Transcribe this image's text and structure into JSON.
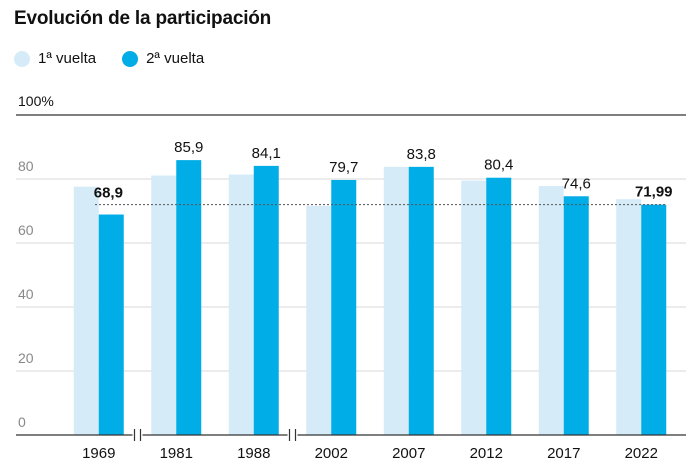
{
  "title": "Evolución de la participación",
  "legend": [
    {
      "label": "1ª vuelta",
      "color": "#d5ebf8"
    },
    {
      "label": "2ª vuelta",
      "color": "#00ade6"
    }
  ],
  "chart_data": {
    "type": "bar",
    "categories": [
      "1969",
      "1981",
      "1988",
      "2002",
      "2007",
      "2012",
      "2017",
      "2022"
    ],
    "series": [
      {
        "name": "1ª vuelta",
        "values": [
          77.6,
          81.1,
          81.4,
          71.6,
          83.8,
          79.5,
          77.8,
          73.7
        ],
        "color": "#d5ebf8"
      },
      {
        "name": "2ª vuelta",
        "values": [
          68.9,
          85.9,
          84.1,
          79.7,
          83.8,
          80.4,
          74.6,
          71.99
        ],
        "color": "#00ade6"
      }
    ],
    "data_labels": [
      "68,9",
      "85,9",
      "84,1",
      "79,7",
      "83,8",
      "80,4",
      "74,6",
      "71,99"
    ],
    "bold_labels": [
      true,
      false,
      false,
      false,
      false,
      false,
      false,
      true
    ],
    "reference_line": 71.99,
    "ylim": [
      0,
      100
    ],
    "yticks": [
      0,
      20,
      40,
      60,
      80
    ],
    "ytick_labels": [
      "0",
      "20",
      "40",
      "60",
      "80"
    ],
    "top_label": "100%",
    "axis_breaks_after": [
      "1969",
      "1988"
    ],
    "grid": true,
    "legend_position": "top-left",
    "xlabel": "",
    "ylabel": ""
  }
}
